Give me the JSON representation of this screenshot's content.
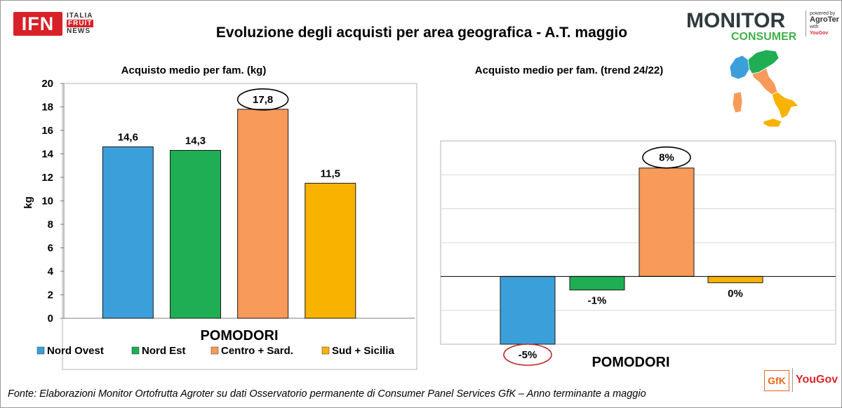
{
  "header": {
    "title": "Evoluzione degli acquisti per area geografica - A.T. maggio"
  },
  "logos": {
    "ifn": {
      "mark": "IFN",
      "line1": "ITALIA",
      "line2": "FRUIT",
      "line3": "NEWS"
    },
    "monitor_consumer": {
      "monitor": "MONITOR",
      "consumer": "CONSUMER",
      "powered_by": "powered by",
      "agroter": "AgroTer",
      "with": "with",
      "yougov_small": "YouGov"
    },
    "gfk": "GfK",
    "yougov": "YouGov"
  },
  "footer": {
    "source": "Fonte: Elaborazioni Monitor Ortofrutta Agroter su dati Osservatorio permanente di Consumer Panel Services GfK – Anno terminante a maggio"
  },
  "legend_items": [
    {
      "label": "Nord Ovest",
      "color": "#3b9fd9"
    },
    {
      "label": "Nord Est",
      "color": "#1fae54"
    },
    {
      "label": "Centro + Sard.",
      "color": "#f79a5a"
    },
    {
      "label": "Sud + Sicilia",
      "color": "#f7b300"
    }
  ],
  "chart_data": [
    {
      "type": "bar",
      "title": "Acquisto medio per fam. (kg)",
      "xlabel": "POMODORI",
      "ylabel": "kg",
      "categories": [
        "Nord Ovest",
        "Nord Est",
        "Centro + Sard.",
        "Sud + Sicilia"
      ],
      "values": [
        14.6,
        14.3,
        17.8,
        11.5
      ],
      "data_labels": [
        "14,6",
        "14,3",
        "17,8",
        "11,5"
      ],
      "colors": [
        "#3b9fd9",
        "#1fae54",
        "#f79a5a",
        "#f7b300"
      ],
      "ylim": [
        0,
        20
      ],
      "yticks": [
        0,
        2,
        4,
        6,
        8,
        10,
        12,
        14,
        16,
        18,
        20
      ],
      "highlighted": "Centro + Sard.",
      "legend": "bottom",
      "grid": false
    },
    {
      "type": "bar",
      "title": "Acquisto medio per fam. (trend 24/22)",
      "xlabel": "POMODORI",
      "categories": [
        "Nord Ovest",
        "Nord Est",
        "Centro + Sard.",
        "Sud + Sicilia"
      ],
      "values": [
        -5,
        -1,
        8,
        0
      ],
      "data_labels": [
        "-5%",
        "-1%",
        "8%",
        "0%"
      ],
      "colors": [
        "#3b9fd9",
        "#1fae54",
        "#f79a5a",
        "#f7b300"
      ],
      "ylim": [
        -5,
        10
      ],
      "highlighted": [
        "Centro + Sard.",
        "Nord Ovest"
      ],
      "grid": true
    }
  ]
}
